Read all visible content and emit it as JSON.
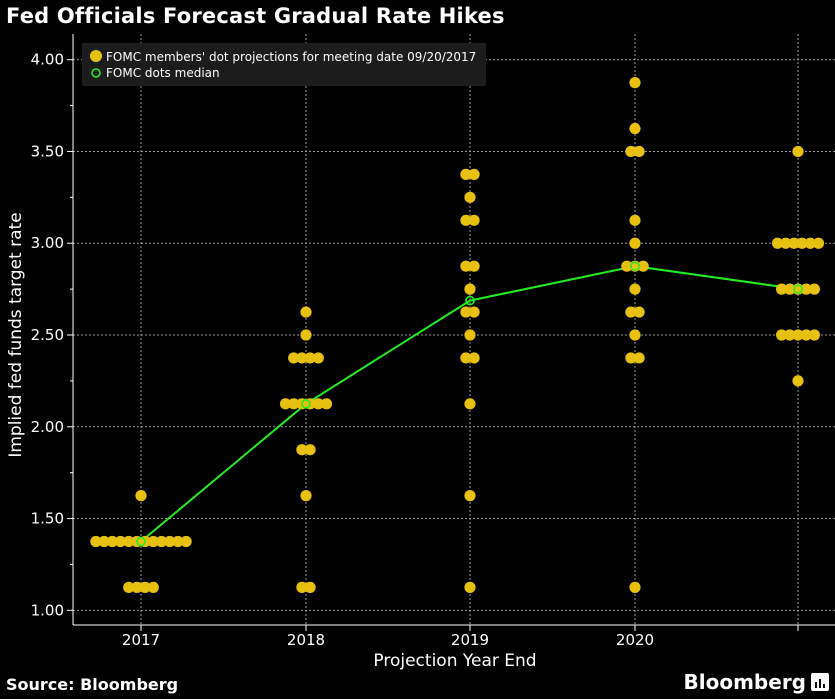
{
  "title": "Fed Officials Forecast Gradual Rate Hikes",
  "source": "Source: Bloomberg",
  "brand": "Bloomberg",
  "colors": {
    "dot": "#e8c010",
    "median": "#22ee22",
    "grid": "#9a9a9a",
    "background": "#000000"
  },
  "chart_data": {
    "type": "scatter",
    "title": "Fed Officials Forecast Gradual Rate Hikes",
    "xlabel": "Projection Year End",
    "ylabel": "Implied fed funds target rate",
    "ylim": [
      0.92,
      4.14
    ],
    "yticks": [
      1.0,
      1.5,
      2.0,
      2.5,
      3.0,
      3.5,
      4.0
    ],
    "ytick_labels": [
      "1.00",
      "1.50",
      "2.00",
      "2.50",
      "3.00",
      "3.50",
      "4.00"
    ],
    "categories": [
      "2017",
      "2018",
      "2019",
      "2020",
      ""
    ],
    "grid": true,
    "legend_position": "top-left",
    "series": [
      {
        "name": "FOMC members' dot projections for meeting date 09/20/2017",
        "points": [
          {
            "x": "2017",
            "y": 1.625,
            "count": 1
          },
          {
            "x": "2017",
            "y": 1.375,
            "count": 12
          },
          {
            "x": "2017",
            "y": 1.125,
            "count": 4
          },
          {
            "x": "2018",
            "y": 2.625,
            "count": 1
          },
          {
            "x": "2018",
            "y": 2.5,
            "count": 1
          },
          {
            "x": "2018",
            "y": 2.375,
            "count": 4
          },
          {
            "x": "2018",
            "y": 2.125,
            "count": 6
          },
          {
            "x": "2018",
            "y": 1.875,
            "count": 2
          },
          {
            "x": "2018",
            "y": 1.625,
            "count": 1
          },
          {
            "x": "2018",
            "y": 1.125,
            "count": 2
          },
          {
            "x": "2019",
            "y": 3.375,
            "count": 2
          },
          {
            "x": "2019",
            "y": 3.25,
            "count": 1
          },
          {
            "x": "2019",
            "y": 3.125,
            "count": 2
          },
          {
            "x": "2019",
            "y": 2.875,
            "count": 2
          },
          {
            "x": "2019",
            "y": 2.75,
            "count": 1
          },
          {
            "x": "2019",
            "y": 2.625,
            "count": 2
          },
          {
            "x": "2019",
            "y": 2.5,
            "count": 1
          },
          {
            "x": "2019",
            "y": 2.375,
            "count": 2
          },
          {
            "x": "2019",
            "y": 2.125,
            "count": 1
          },
          {
            "x": "2019",
            "y": 1.625,
            "count": 1
          },
          {
            "x": "2019",
            "y": 1.125,
            "count": 1
          },
          {
            "x": "2020",
            "y": 3.875,
            "count": 1
          },
          {
            "x": "2020",
            "y": 3.625,
            "count": 1
          },
          {
            "x": "2020",
            "y": 3.5,
            "count": 2
          },
          {
            "x": "2020",
            "y": 3.125,
            "count": 1
          },
          {
            "x": "2020",
            "y": 3.0,
            "count": 1
          },
          {
            "x": "2020",
            "y": 2.875,
            "count": 3
          },
          {
            "x": "2020",
            "y": 2.75,
            "count": 1
          },
          {
            "x": "2020",
            "y": 2.625,
            "count": 2
          },
          {
            "x": "2020",
            "y": 2.5,
            "count": 1
          },
          {
            "x": "2020",
            "y": 2.375,
            "count": 2
          },
          {
            "x": "2020",
            "y": 1.125,
            "count": 1
          },
          {
            "x": "",
            "y": 3.5,
            "count": 1
          },
          {
            "x": "",
            "y": 3.0,
            "count": 6
          },
          {
            "x": "",
            "y": 2.75,
            "count": 5
          },
          {
            "x": "",
            "y": 2.5,
            "count": 5
          },
          {
            "x": "",
            "y": 2.25,
            "count": 1
          }
        ]
      },
      {
        "name": "FOMC dots median",
        "points": [
          {
            "x": "2017",
            "y": 1.375
          },
          {
            "x": "2018",
            "y": 2.125
          },
          {
            "x": "2019",
            "y": 2.6875
          },
          {
            "x": "2020",
            "y": 2.875
          },
          {
            "x": "",
            "y": 2.75
          }
        ]
      }
    ]
  }
}
